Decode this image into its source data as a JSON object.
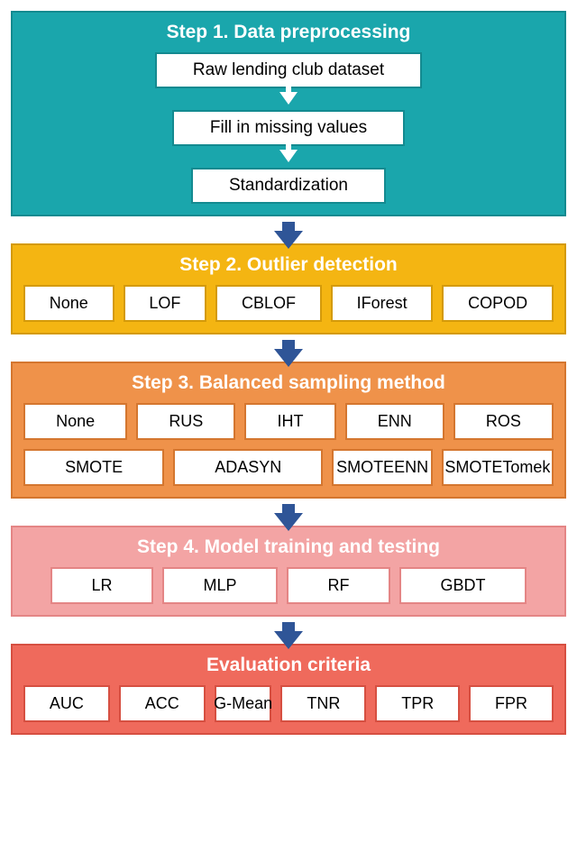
{
  "diagram": {
    "type": "flowchart",
    "direction": "top-to-bottom",
    "connector_arrow_color": "#2f5597",
    "inner_arrow_color": "#ffffff",
    "background_color": "#ffffff",
    "title_fontsize": 21,
    "item_fontsize": 18,
    "steps": [
      {
        "title": "Step 1. Data preprocessing",
        "bg_color": "#1aa6ac",
        "border_color": "#138a90",
        "item_border_color": "#138a90",
        "layout": "vertical",
        "inner_items": [
          "Raw lending club dataset",
          "Fill in missing values",
          "Standardization"
        ]
      },
      {
        "title": "Step 2. Outlier detection",
        "bg_color": "#f4b512",
        "border_color": "#d49a0a",
        "item_border_color": "#d49a0a",
        "layout": "row",
        "rows": [
          [
            "None",
            "LOF",
            "CBLOF",
            "IForest",
            "COPOD"
          ]
        ]
      },
      {
        "title": "Step 3. Balanced sampling method",
        "bg_color": "#ef924a",
        "border_color": "#d4762f",
        "item_border_color": "#d4762f",
        "layout": "row",
        "rows": [
          [
            "None",
            "RUS",
            "IHT",
            "ENN",
            "ROS"
          ],
          [
            "SMOTE",
            "ADASYN",
            "SMOTEENN",
            "SMOTETomek"
          ]
        ]
      },
      {
        "title": "Step 4. Model training and testing",
        "bg_color": "#f3a4a4",
        "border_color": "#e48585",
        "item_border_color": "#e48585",
        "layout": "row",
        "row_padding": true,
        "rows": [
          [
            "LR",
            "MLP",
            "RF",
            "GBDT"
          ]
        ]
      },
      {
        "title": "Evaluation criteria",
        "bg_color": "#ef6a5c",
        "border_color": "#d64f41",
        "item_border_color": "#d64f41",
        "layout": "row",
        "rows": [
          [
            "AUC",
            "ACC",
            "G-Mean",
            "TNR",
            "TPR",
            "FPR"
          ]
        ]
      }
    ]
  }
}
